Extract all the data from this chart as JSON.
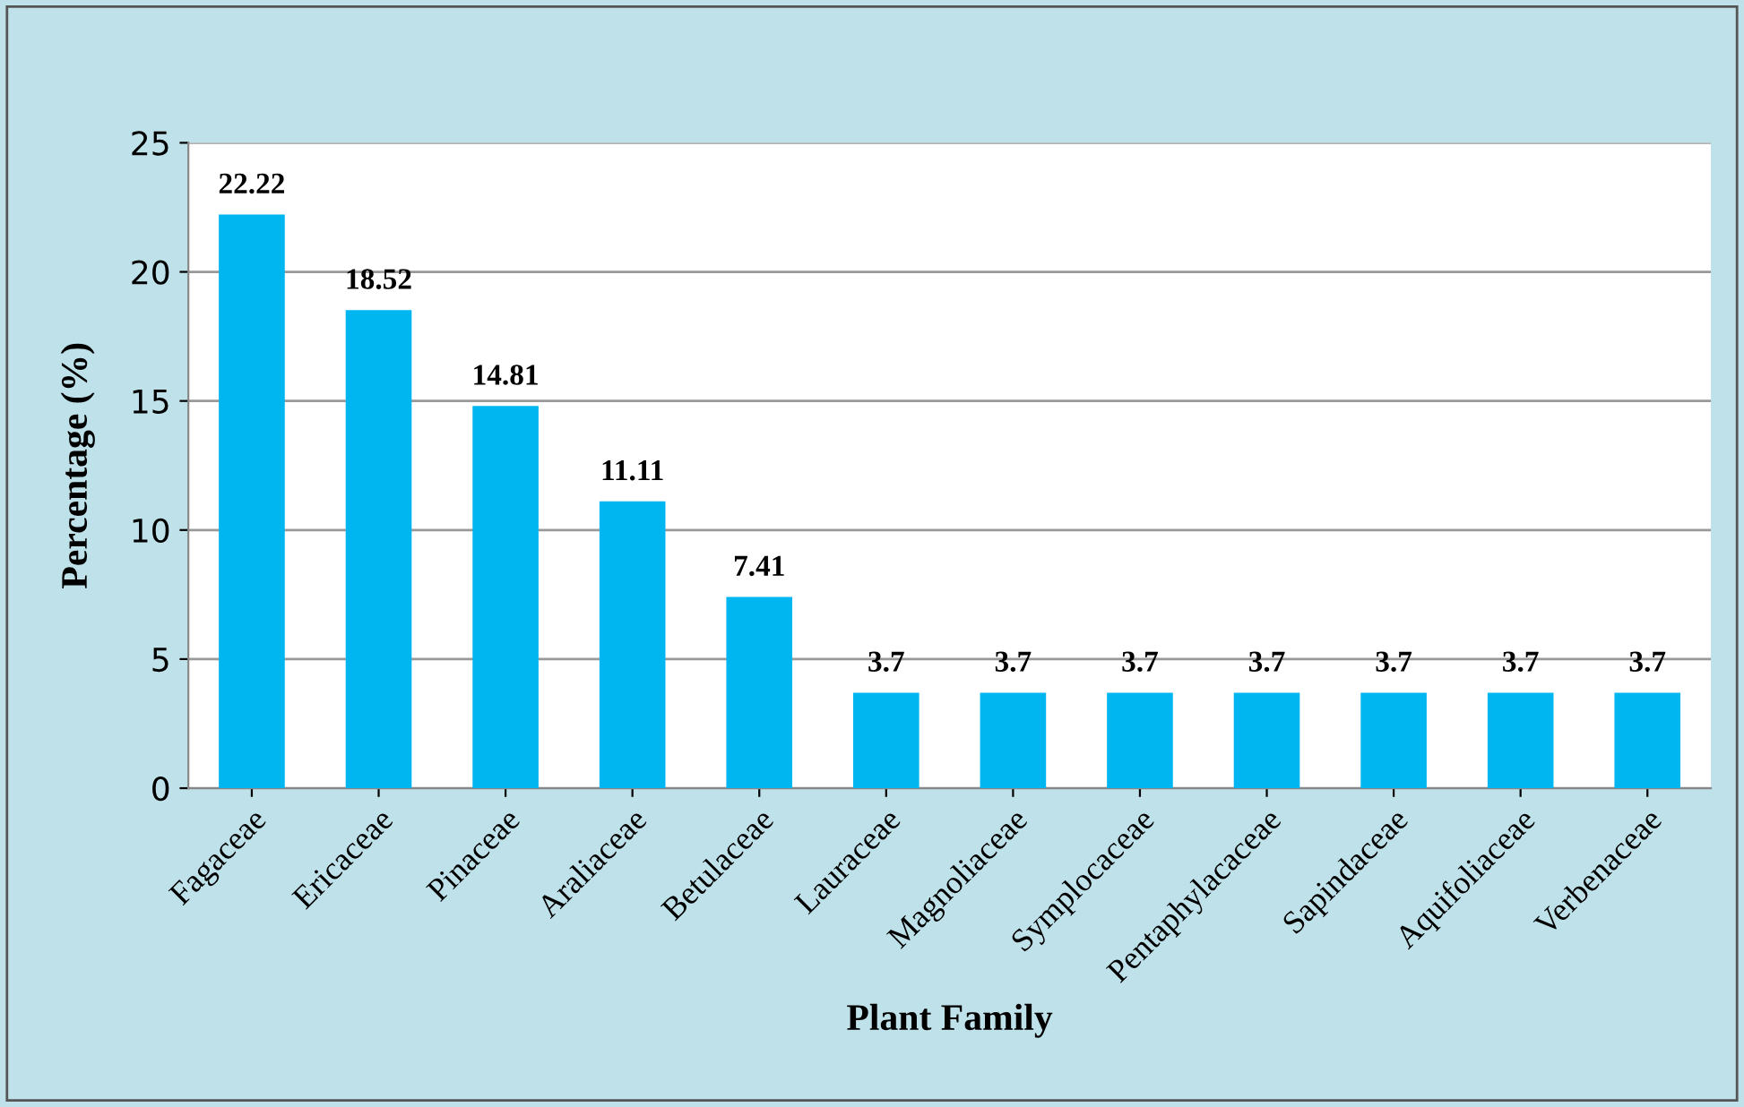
{
  "chart_data": {
    "type": "bar",
    "xlabel": "Plant Family",
    "ylabel": "Percentage (%)",
    "categories": [
      "Fagaceae",
      "Ericaceae",
      "Pinaceae",
      "Araliaceae",
      "Betulaceae",
      "Lauraceae",
      "Magnoliaceae",
      "Symplocaceae",
      "Pentaphylacaceae",
      "Sapindaceae",
      "Aquifoliaceae",
      "Verbenaceae"
    ],
    "values": [
      22.22,
      18.52,
      14.81,
      11.11,
      7.41,
      3.7,
      3.7,
      3.7,
      3.7,
      3.7,
      3.7,
      3.7
    ],
    "color": "#00b6f0",
    "ylim": [
      0,
      25
    ],
    "yticks": [
      0,
      5,
      10,
      15,
      20,
      25
    ],
    "grid": "y",
    "data_labels": true
  }
}
